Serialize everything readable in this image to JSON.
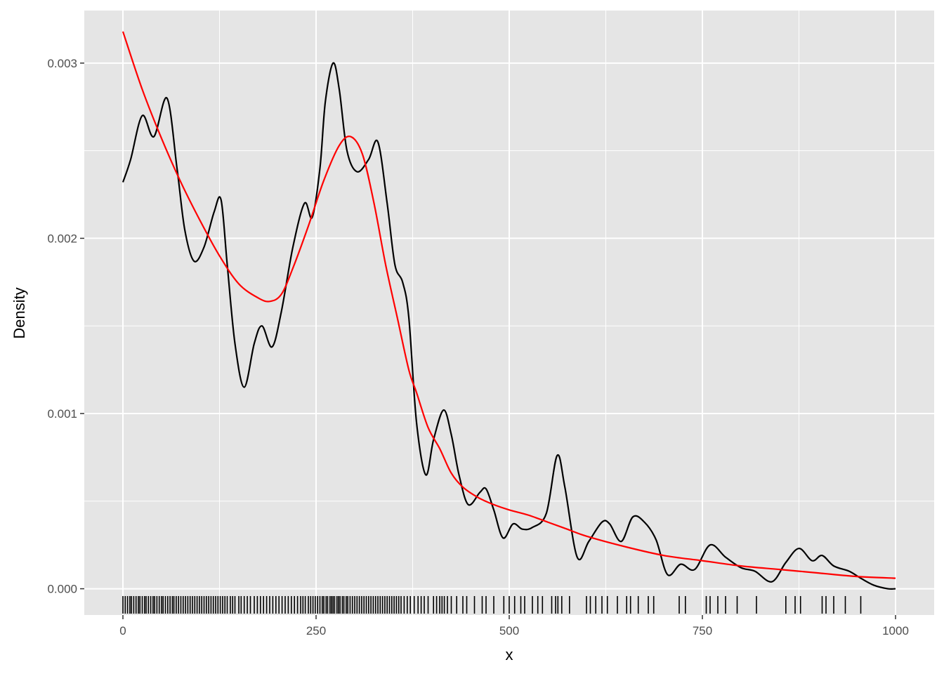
{
  "chart_data": {
    "type": "line",
    "title": "",
    "xlabel": "x",
    "ylabel": "Density",
    "xlim": [
      -50,
      1050
    ],
    "ylim": [
      -0.00015,
      0.0033
    ],
    "x_ticks": [
      0,
      250,
      500,
      750,
      1000
    ],
    "x_tick_labels": [
      "0",
      "250",
      "500",
      "750",
      "1000"
    ],
    "y_ticks": [
      0.0,
      0.001,
      0.002,
      0.003
    ],
    "y_tick_labels": [
      "0.000",
      "0.001",
      "0.002",
      "0.003"
    ],
    "grid": true,
    "legend": "none",
    "colors": {
      "panel": "#e5e5e5",
      "grid": "#ffffff",
      "kde": "#000000",
      "fit": "#ff0000",
      "rug": "#000000"
    },
    "series": [
      {
        "color": "#000000",
        "x": [
          0,
          10,
          25,
          40,
          57,
          70,
          80,
          92,
          105,
          118,
          127,
          135,
          145,
          157,
          170,
          180,
          193,
          205,
          220,
          235,
          245,
          255,
          262,
          272,
          280,
          290,
          303,
          318,
          330,
          342,
          352,
          362,
          370,
          380,
          392,
          402,
          415,
          425,
          435,
          447,
          462,
          470,
          480,
          492,
          505,
          517,
          530,
          548,
          562,
          572,
          588,
          603,
          620,
          630,
          645,
          660,
          675,
          690,
          705,
          722,
          740,
          760,
          780,
          800,
          818,
          840,
          858,
          875,
          892,
          905,
          920,
          940,
          955,
          972,
          990,
          1000
        ],
        "y": [
          0.00232,
          0.00245,
          0.0027,
          0.00258,
          0.0028,
          0.0024,
          0.00205,
          0.00187,
          0.00195,
          0.00215,
          0.00222,
          0.00185,
          0.0014,
          0.00115,
          0.0014,
          0.0015,
          0.00138,
          0.00158,
          0.00195,
          0.0022,
          0.00212,
          0.0024,
          0.00278,
          0.003,
          0.00285,
          0.0025,
          0.00238,
          0.00245,
          0.00255,
          0.0022,
          0.00185,
          0.00175,
          0.00155,
          0.00095,
          0.00065,
          0.00085,
          0.00102,
          0.00088,
          0.00065,
          0.00048,
          0.00055,
          0.00057,
          0.00045,
          0.00029,
          0.00037,
          0.00034,
          0.00035,
          0.00043,
          0.00076,
          0.00058,
          0.00018,
          0.00027,
          0.00038,
          0.00037,
          0.00027,
          0.00041,
          0.00038,
          0.00028,
          8e-05,
          0.00014,
          0.00011,
          0.00025,
          0.00018,
          0.00012,
          0.0001,
          4e-05,
          0.00015,
          0.00023,
          0.00016,
          0.00019,
          0.00013,
          0.0001,
          6e-05,
          2e-05,
          0.0,
          0.0
        ]
      },
      {
        "color": "#ff0000",
        "x": [
          0,
          25,
          50,
          75,
          100,
          125,
          150,
          175,
          190,
          205,
          220,
          240,
          260,
          280,
          295,
          310,
          325,
          340,
          355,
          370,
          380,
          395,
          410,
          425,
          440,
          460,
          480,
          500,
          525,
          550,
          575,
          600,
          650,
          700,
          750,
          800,
          850,
          900,
          950,
          1000
        ],
        "y": [
          0.00318,
          0.00285,
          0.00257,
          0.00232,
          0.0021,
          0.0019,
          0.00174,
          0.00166,
          0.00164,
          0.00168,
          0.00183,
          0.00207,
          0.00233,
          0.00253,
          0.00258,
          0.00248,
          0.0022,
          0.00185,
          0.00155,
          0.00125,
          0.00112,
          0.00092,
          0.0008,
          0.00066,
          0.00058,
          0.00052,
          0.00048,
          0.00045,
          0.00042,
          0.00038,
          0.00034,
          0.0003,
          0.00024,
          0.00019,
          0.00016,
          0.00013,
          0.00011,
          9e-05,
          7e-05,
          6e-05
        ]
      }
    ],
    "rug": [
      0,
      3,
      6,
      9,
      11,
      14,
      17,
      20,
      22,
      25,
      28,
      30,
      33,
      36,
      39,
      41,
      44,
      47,
      50,
      52,
      55,
      58,
      61,
      64,
      66,
      69,
      72,
      75,
      78,
      81,
      84,
      87,
      90,
      93,
      96,
      99,
      102,
      105,
      108,
      111,
      114,
      117,
      120,
      123,
      126,
      129,
      132,
      135,
      139,
      142,
      145,
      150,
      153,
      157,
      161,
      165,
      170,
      174,
      178,
      182,
      186,
      190,
      194,
      198,
      202,
      206,
      210,
      214,
      218,
      222,
      226,
      230,
      233,
      236,
      240,
      243,
      246,
      249,
      252,
      255,
      258,
      260,
      263,
      265,
      268,
      270,
      272,
      274,
      277,
      279,
      281,
      284,
      286,
      289,
      291,
      294,
      297,
      300,
      303,
      306,
      309,
      312,
      315,
      318,
      321,
      324,
      327,
      330,
      333,
      336,
      339,
      342,
      345,
      348,
      351,
      354,
      357,
      360,
      364,
      368,
      372,
      377,
      382,
      386,
      390,
      395,
      402,
      406,
      410,
      413,
      416,
      420,
      425,
      432,
      440,
      445,
      455,
      465,
      470,
      480,
      493,
      500,
      507,
      515,
      520,
      530,
      537,
      543,
      555,
      560,
      563,
      568,
      578,
      600,
      605,
      612,
      620,
      627,
      640,
      652,
      657,
      667,
      680,
      687,
      720,
      728,
      755,
      760,
      770,
      780,
      795,
      820,
      858,
      870,
      877,
      905,
      910,
      920,
      935,
      955
    ]
  }
}
